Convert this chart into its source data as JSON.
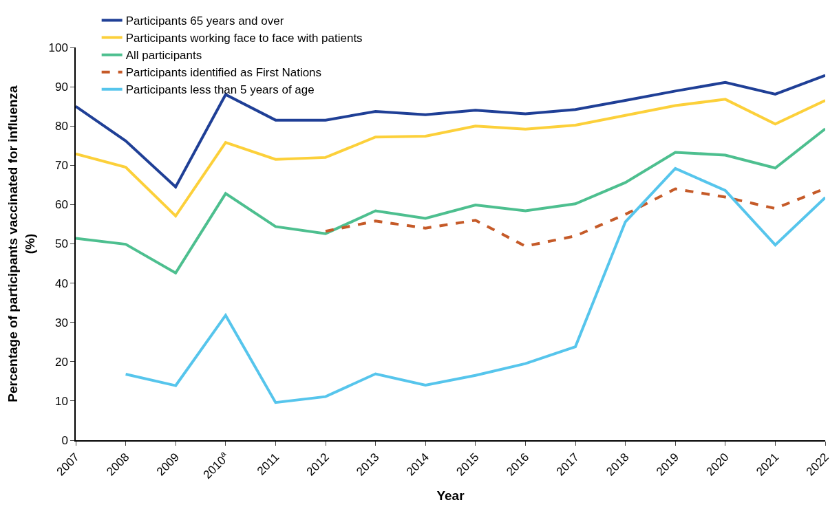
{
  "chart_data": {
    "type": "line",
    "xlabel": "Year",
    "ylabel": "Percentage of participants vaccinated for influenza (%)",
    "categories": [
      "2007",
      "2008",
      "2009",
      "2010$^{a}$",
      "2011",
      "2012",
      "2013",
      "2014",
      "2015",
      "2016",
      "2017",
      "2018",
      "2019",
      "2020",
      "2021",
      "2022"
    ],
    "ylim": [
      0,
      100
    ],
    "yticks": [
      0,
      10,
      20,
      30,
      40,
      50,
      60,
      70,
      80,
      90,
      100
    ],
    "legend": "top",
    "marker": "none",
    "series": [
      {
        "name": "Participants 65 years and over",
        "color": "#1f3f96",
        "values": [
          85,
          76.2,
          64.5,
          88,
          81.5,
          81.5,
          83.7,
          82.9,
          84,
          83.1,
          84.2,
          86.5,
          88.9,
          91.1,
          88.1,
          92.9
        ]
      },
      {
        "name": "Participants working face to face with patients",
        "color": "#fcd03a",
        "values": [
          72.9,
          69.5,
          57.1,
          75.8,
          71.5,
          72,
          77.2,
          77.4,
          80,
          79.2,
          80.2,
          82.7,
          85.2,
          86.8,
          80.5,
          86.5
        ]
      },
      {
        "name": "All participants",
        "color": "#4dbf8f",
        "values": [
          51.4,
          49.9,
          42.6,
          62.8,
          54.4,
          52.6,
          58.4,
          56.5,
          59.9,
          58.4,
          60.2,
          65.6,
          73.3,
          72.6,
          69.3,
          79.3
        ]
      },
      {
        "name": "Participants identified as First Nations",
        "color": "#c55a28",
        "line_style": "dashed",
        "values": [
          null,
          null,
          null,
          null,
          null,
          53.2,
          55.8,
          54,
          56,
          49.4,
          52,
          57.5,
          64,
          61.9,
          59,
          64.1
        ]
      },
      {
        "name": "Participants less than 5 years of age",
        "color": "#56c5ec",
        "values": [
          null,
          16.8,
          13.9,
          31.8,
          9.6,
          11.1,
          16.9,
          14,
          16.5,
          19.5,
          23.8,
          55.6,
          69.2,
          63.6,
          49.7,
          61.8
        ]
      }
    ]
  }
}
